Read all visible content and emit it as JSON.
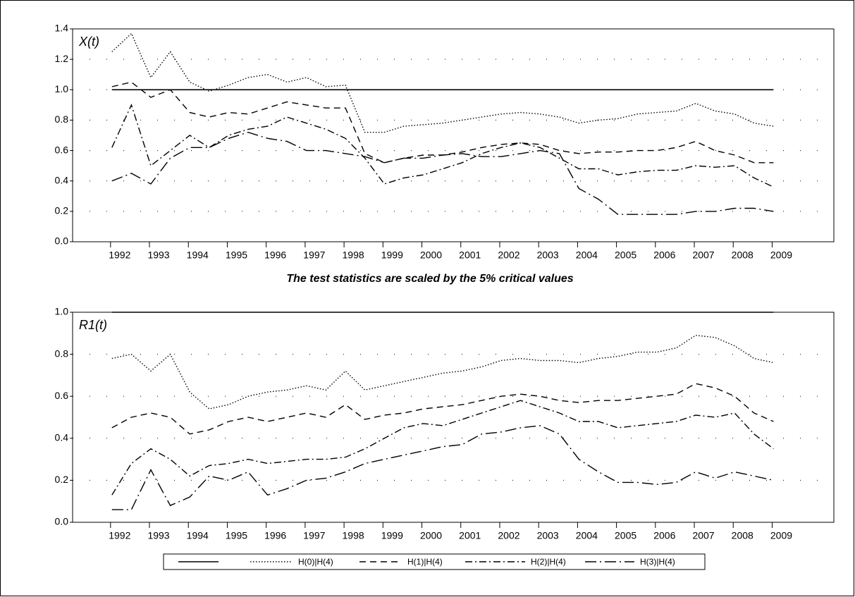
{
  "chart_data": [
    {
      "type": "line",
      "label": "X(t)",
      "subtitle": "The test statistics are scaled by the 5% critical values",
      "x": [
        1991.8,
        1992.3,
        1992.8,
        1993.3,
        1993.8,
        1994.3,
        1994.8,
        1995.3,
        1995.8,
        1996.3,
        1996.8,
        1997.3,
        1997.8,
        1998.3,
        1998.8,
        1999.3,
        1999.8,
        2000.3,
        2000.8,
        2001.3,
        2001.8,
        2002.3,
        2002.8,
        2003.3,
        2003.8,
        2004.3,
        2004.8,
        2005.3,
        2005.8,
        2006.3,
        2006.8,
        2007.3,
        2007.8,
        2008.3,
        2008.8
      ],
      "xlim": [
        1990.79,
        2010.35
      ],
      "xticks": [
        1992,
        1993,
        1994,
        1995,
        1996,
        1997,
        1998,
        1999,
        2000,
        2001,
        2002,
        2003,
        2004,
        2005,
        2006,
        2007,
        2008,
        2009
      ],
      "ylim": [
        0,
        1.4
      ],
      "yticks": [
        {
          "value": 0,
          "label": "0.0"
        },
        0.2,
        0.4,
        0.6,
        0.8,
        {
          "value": 1,
          "label": "1.0"
        },
        1.2,
        1.4
      ],
      "grid": true,
      "series": [
        {
          "color": "#000000",
          "dash": "solid",
          "values": [
            1,
            1,
            1,
            1,
            1,
            1,
            1,
            1,
            1,
            1,
            1,
            1,
            1,
            1,
            1,
            1,
            1,
            1,
            1,
            1,
            1,
            1,
            1,
            1,
            1,
            1,
            1,
            1,
            1,
            1,
            1,
            1,
            1,
            1,
            1
          ]
        },
        {
          "color": "#000000",
          "dash": "dotted",
          "values": [
            1.25,
            1.37,
            1.08,
            1.25,
            1.05,
            0.99,
            1.03,
            1.08,
            1.1,
            1.05,
            1.08,
            1.02,
            1.03,
            0.72,
            0.72,
            0.76,
            0.77,
            0.78,
            0.8,
            0.82,
            0.84,
            0.85,
            0.84,
            0.82,
            0.78,
            0.8,
            0.81,
            0.84,
            0.85,
            0.86,
            0.91,
            0.86,
            0.84,
            0.78,
            0.76
          ]
        },
        {
          "color": "#000000",
          "dash": "dashed",
          "values": [
            1.02,
            1.05,
            0.95,
            1.0,
            0.85,
            0.82,
            0.85,
            0.84,
            0.88,
            0.92,
            0.9,
            0.88,
            0.88,
            0.58,
            0.52,
            0.55,
            0.57,
            0.57,
            0.59,
            0.62,
            0.64,
            0.65,
            0.64,
            0.6,
            0.58,
            0.59,
            0.59,
            0.6,
            0.6,
            0.62,
            0.66,
            0.6,
            0.57,
            0.52,
            0.52
          ]
        },
        {
          "color": "#000000",
          "dash": "dashdot",
          "values": [
            0.62,
            0.9,
            0.5,
            0.6,
            0.7,
            0.62,
            0.7,
            0.74,
            0.76,
            0.82,
            0.78,
            0.74,
            0.68,
            0.55,
            0.38,
            0.42,
            0.44,
            0.48,
            0.52,
            0.58,
            0.62,
            0.65,
            0.62,
            0.55,
            0.48,
            0.48,
            0.44,
            0.46,
            0.47,
            0.47,
            0.5,
            0.49,
            0.5,
            0.42,
            0.36
          ]
        },
        {
          "color": "#000000",
          "dash": "longdashdot",
          "values": [
            0.4,
            0.45,
            0.38,
            0.55,
            0.62,
            0.62,
            0.68,
            0.72,
            0.68,
            0.66,
            0.6,
            0.6,
            0.58,
            0.56,
            0.52,
            0.55,
            0.55,
            0.57,
            0.58,
            0.56,
            0.56,
            0.58,
            0.6,
            0.58,
            0.35,
            0.28,
            0.18,
            0.18,
            0.18,
            0.18,
            0.2,
            0.2,
            0.22,
            0.22,
            0.2
          ]
        }
      ]
    },
    {
      "type": "line",
      "label": "R1(t)",
      "x": [
        1991.8,
        1992.3,
        1992.8,
        1993.3,
        1993.8,
        1994.3,
        1994.8,
        1995.3,
        1995.8,
        1996.3,
        1996.8,
        1997.3,
        1997.8,
        1998.3,
        1998.8,
        1999.3,
        1999.8,
        2000.3,
        2000.8,
        2001.3,
        2001.8,
        2002.3,
        2002.8,
        2003.3,
        2003.8,
        2004.3,
        2004.8,
        2005.3,
        2005.8,
        2006.3,
        2006.8,
        2007.3,
        2007.8,
        2008.3,
        2008.8
      ],
      "xlim": [
        1990.79,
        2010.35
      ],
      "xticks": [
        1992,
        1993,
        1994,
        1995,
        1996,
        1997,
        1998,
        1999,
        2000,
        2001,
        2002,
        2003,
        2004,
        2005,
        2006,
        2007,
        2008,
        2009
      ],
      "ylim": [
        0,
        1
      ],
      "yticks": [
        {
          "value": 0,
          "label": "0.0"
        },
        0.2,
        0.4,
        0.6,
        0.8,
        {
          "value": 1,
          "label": "1.0"
        }
      ],
      "grid": true,
      "series": [
        {
          "color": "#000000",
          "dash": "solid",
          "values": [
            1,
            1,
            1,
            1,
            1,
            1,
            1,
            1,
            1,
            1,
            1,
            1,
            1,
            1,
            1,
            1,
            1,
            1,
            1,
            1,
            1,
            1,
            1,
            1,
            1,
            1,
            1,
            1,
            1,
            1,
            1,
            1,
            1,
            1,
            1
          ]
        },
        {
          "name": "H(0)|H(4)",
          "color": "#000000",
          "dash": "dotted",
          "values": [
            0.78,
            0.8,
            0.72,
            0.8,
            0.62,
            0.54,
            0.56,
            0.6,
            0.62,
            0.63,
            0.65,
            0.63,
            0.72,
            0.63,
            0.65,
            0.67,
            0.69,
            0.71,
            0.72,
            0.74,
            0.77,
            0.78,
            0.77,
            0.77,
            0.76,
            0.78,
            0.79,
            0.81,
            0.81,
            0.83,
            0.89,
            0.88,
            0.84,
            0.78,
            0.76
          ]
        },
        {
          "name": "H(1)|H(4)",
          "color": "#000000",
          "dash": "dashed",
          "values": [
            0.45,
            0.5,
            0.52,
            0.5,
            0.42,
            0.44,
            0.48,
            0.5,
            0.48,
            0.5,
            0.52,
            0.5,
            0.56,
            0.49,
            0.51,
            0.52,
            0.54,
            0.55,
            0.56,
            0.58,
            0.6,
            0.61,
            0.6,
            0.58,
            0.57,
            0.58,
            0.58,
            0.59,
            0.6,
            0.61,
            0.66,
            0.64,
            0.6,
            0.52,
            0.48
          ]
        },
        {
          "name": "H(2)|H(4)",
          "color": "#000000",
          "dash": "dashdot",
          "values": [
            0.13,
            0.28,
            0.35,
            0.3,
            0.22,
            0.27,
            0.28,
            0.3,
            0.28,
            0.29,
            0.3,
            0.3,
            0.31,
            0.35,
            0.4,
            0.45,
            0.47,
            0.46,
            0.49,
            0.52,
            0.55,
            0.58,
            0.55,
            0.52,
            0.48,
            0.48,
            0.45,
            0.46,
            0.47,
            0.48,
            0.51,
            0.5,
            0.52,
            0.42,
            0.35
          ]
        },
        {
          "name": "H(3)|H(4)",
          "color": "#000000",
          "dash": "longdashdot",
          "values": [
            0.06,
            0.06,
            0.25,
            0.08,
            0.12,
            0.22,
            0.2,
            0.24,
            0.13,
            0.16,
            0.2,
            0.21,
            0.24,
            0.28,
            0.3,
            0.32,
            0.34,
            0.36,
            0.37,
            0.42,
            0.43,
            0.45,
            0.46,
            0.42,
            0.3,
            0.24,
            0.19,
            0.19,
            0.18,
            0.19,
            0.24,
            0.21,
            0.24,
            0.22,
            0.2
          ]
        }
      ]
    }
  ]
}
